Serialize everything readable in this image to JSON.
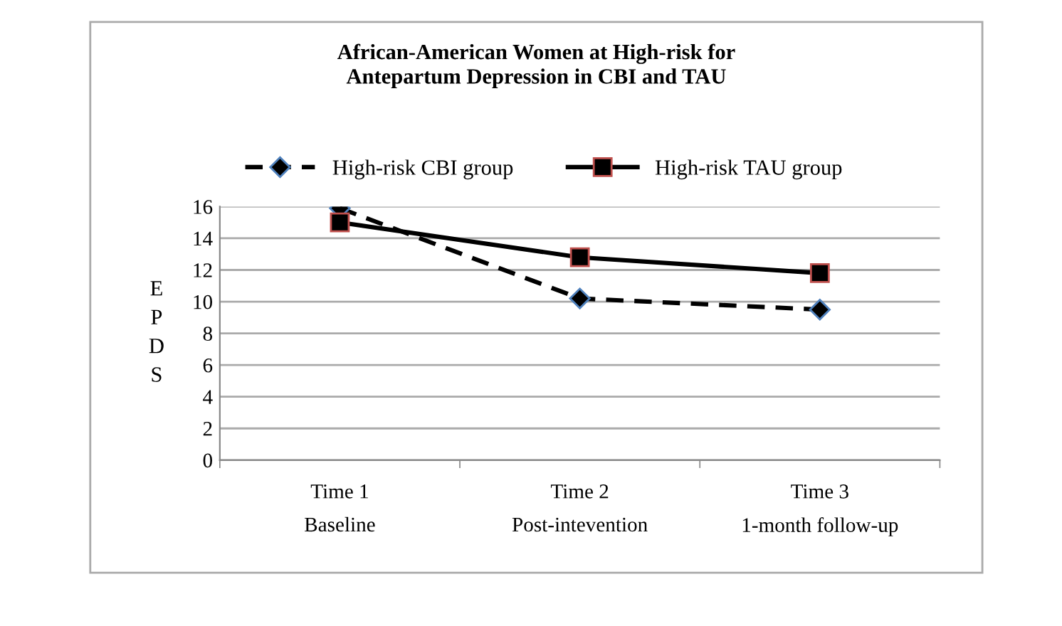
{
  "chart_data": {
    "type": "line",
    "title": "African-American Women at High-risk for\nAntepartum Depression in CBI and TAU",
    "ylabel": "EPDS",
    "categories": [
      "Time 1\nBaseline",
      "Time 2\nPost-intevention",
      "Time 3\n1-month follow-up"
    ],
    "series": [
      {
        "name": "High-risk CBI group",
        "color": "#000000",
        "values": [
          15.9,
          10.2,
          9.5
        ],
        "marker": "diamond",
        "line_style": "dashed"
      },
      {
        "name": "High-risk TAU group",
        "color": "#000000",
        "values": [
          15.0,
          12.8,
          11.8
        ],
        "marker": "square",
        "line_style": "solid"
      }
    ],
    "ylim": [
      0,
      16
    ],
    "yticks": [
      0,
      2,
      4,
      6,
      8,
      10,
      12,
      14,
      16
    ],
    "grid": "y",
    "legend": "top"
  }
}
